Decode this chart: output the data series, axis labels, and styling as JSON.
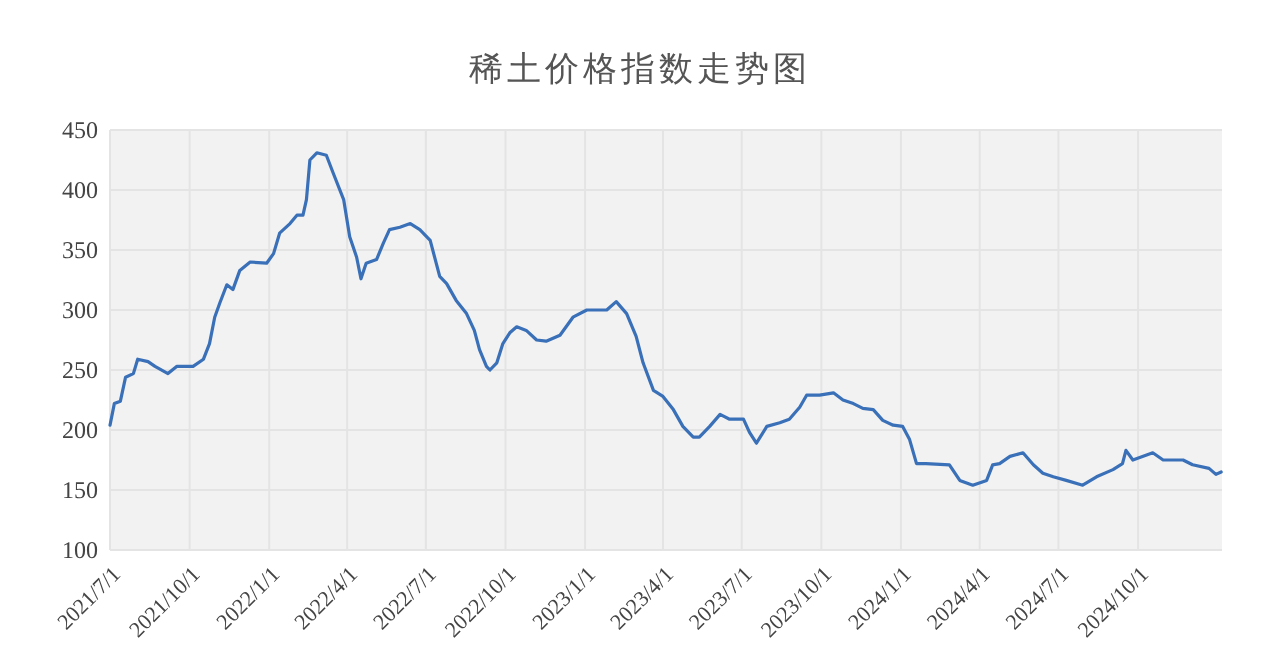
{
  "chart_data": {
    "type": "line",
    "title": "稀土价格指数走势图",
    "x": [
      "2021-07-01",
      "2021-07-06",
      "2021-07-13",
      "2021-07-19",
      "2021-07-28",
      "2021-08-02",
      "2021-08-14",
      "2021-08-22",
      "2021-09-06",
      "2021-09-16",
      "2021-10-05",
      "2021-10-17",
      "2021-10-24",
      "2021-10-30",
      "2021-11-05",
      "2021-11-13",
      "2021-11-20",
      "2021-11-28",
      "2021-12-10",
      "2021-12-29",
      "2022-01-06",
      "2022-01-13",
      "2022-01-25",
      "2022-02-02",
      "2022-02-09",
      "2022-02-13",
      "2022-02-17",
      "2022-02-25",
      "2022-03-08",
      "2022-03-16",
      "2022-03-28",
      "2022-04-04",
      "2022-04-12",
      "2022-04-17",
      "2022-04-23",
      "2022-05-05",
      "2022-05-13",
      "2022-05-20",
      "2022-06-01",
      "2022-06-13",
      "2022-06-24",
      "2022-07-06",
      "2022-07-17",
      "2022-07-25",
      "2022-08-05",
      "2022-08-17",
      "2022-08-26",
      "2022-09-01",
      "2022-09-09",
      "2022-09-13",
      "2022-09-21",
      "2022-09-28",
      "2022-10-06",
      "2022-10-14",
      "2022-10-25",
      "2022-11-06",
      "2022-11-17",
      "2022-12-03",
      "2022-12-18",
      "2023-01-03",
      "2023-01-26",
      "2023-02-06",
      "2023-02-18",
      "2023-03-01",
      "2023-03-09",
      "2023-03-21",
      "2023-04-01",
      "2023-04-13",
      "2023-04-24",
      "2023-05-06",
      "2023-05-13",
      "2023-05-25",
      "2023-06-06",
      "2023-06-17",
      "2023-07-03",
      "2023-07-10",
      "2023-07-18",
      "2023-07-30",
      "2023-08-14",
      "2023-08-25",
      "2023-09-06",
      "2023-09-14",
      "2023-09-29",
      "2023-10-15",
      "2023-10-26",
      "2023-11-07",
      "2023-11-18",
      "2023-11-30",
      "2023-12-11",
      "2023-12-23",
      "2024-01-03",
      "2024-01-11",
      "2024-01-19",
      "2024-01-30",
      "2024-02-26",
      "2024-03-09",
      "2024-03-24",
      "2024-04-09",
      "2024-04-16",
      "2024-04-24",
      "2024-05-06",
      "2024-05-21",
      "2024-06-02",
      "2024-06-13",
      "2024-06-25",
      "2024-07-10",
      "2024-07-29",
      "2024-08-14",
      "2024-09-02",
      "2024-09-13",
      "2024-09-17",
      "2024-09-25",
      "2024-10-18",
      "2024-10-30",
      "2024-11-22",
      "2024-12-03",
      "2024-12-22",
      "2024-12-30",
      "2025-01-05"
    ],
    "series": [
      {
        "color": "#3a70b8",
        "values": [
          204,
          222,
          224,
          244,
          247,
          259,
          257,
          253,
          247,
          253,
          253,
          259,
          272,
          294,
          306,
          321,
          317,
          333,
          340,
          339,
          347,
          364,
          372,
          379,
          379,
          392,
          425,
          431,
          429,
          414,
          392,
          361,
          344,
          326,
          339,
          342,
          356,
          367,
          369,
          372,
          367,
          358,
          328,
          322,
          308,
          297,
          283,
          267,
          253,
          250,
          256,
          272,
          281,
          286,
          283,
          275,
          274,
          279,
          294,
          300,
          300,
          307,
          297,
          278,
          256,
          233,
          228,
          217,
          203,
          194,
          194,
          203,
          213,
          209,
          209,
          198,
          189,
          203,
          206,
          209,
          219,
          229,
          229,
          231,
          225,
          222,
          218,
          217,
          208,
          204,
          203,
          192,
          172,
          172,
          171,
          158,
          154,
          158,
          171,
          172,
          178,
          181,
          171,
          164,
          161,
          158,
          154,
          161,
          167,
          172,
          183,
          175,
          181,
          175,
          175,
          171,
          168,
          163,
          165
        ]
      }
    ],
    "xlim": [
      "2021-07-01",
      "2025-01-06"
    ],
    "xticks": [
      {
        "value": "2021-07-01",
        "label": "2021/7/1"
      },
      {
        "value": "2021-10-01",
        "label": "2021/10/1"
      },
      {
        "value": "2022-01-01",
        "label": "2022/1/1"
      },
      {
        "value": "2022-04-01",
        "label": "2022/4/1"
      },
      {
        "value": "2022-07-01",
        "label": "2022/7/1"
      },
      {
        "value": "2022-10-01",
        "label": "2022/10/1"
      },
      {
        "value": "2023-01-01",
        "label": "2023/1/1"
      },
      {
        "value": "2023-04-01",
        "label": "2023/4/1"
      },
      {
        "value": "2023-07-01",
        "label": "2023/7/1"
      },
      {
        "value": "2023-10-01",
        "label": "2023/10/1"
      },
      {
        "value": "2024-01-01",
        "label": "2024/1/1"
      },
      {
        "value": "2024-04-01",
        "label": "2024/4/1"
      },
      {
        "value": "2024-07-01",
        "label": "2024/7/1"
      },
      {
        "value": "2024-10-01",
        "label": "2024/10/1"
      }
    ],
    "ylim": [
      100,
      450
    ],
    "yticks": [
      100,
      150,
      200,
      250,
      300,
      350,
      400,
      450
    ],
    "grid": true
  }
}
